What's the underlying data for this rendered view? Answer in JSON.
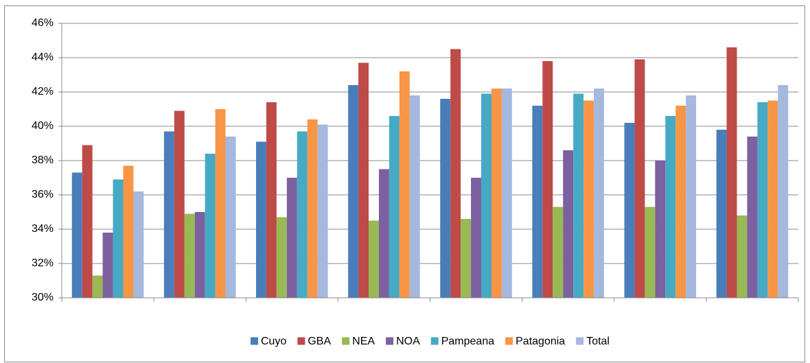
{
  "chart_data": {
    "type": "bar",
    "categories": [
      null,
      null,
      null,
      null,
      null,
      null,
      null,
      null
    ],
    "series": [
      {
        "name": "Cuyo",
        "color": "#4a7ebb",
        "values": [
          37.3,
          39.7,
          39.1,
          42.4,
          41.6,
          41.2,
          40.2,
          39.8
        ]
      },
      {
        "name": "GBA",
        "color": "#be4b48",
        "values": [
          38.9,
          40.9,
          41.4,
          43.7,
          44.5,
          43.8,
          43.9,
          44.6
        ]
      },
      {
        "name": "NEA",
        "color": "#98b954",
        "values": [
          31.3,
          34.9,
          34.7,
          34.5,
          34.6,
          35.3,
          35.3,
          34.8
        ]
      },
      {
        "name": "NOA",
        "color": "#7d60a0",
        "values": [
          33.8,
          35.0,
          37.0,
          37.5,
          37.0,
          38.6,
          38.0,
          39.4
        ]
      },
      {
        "name": "Pampeana",
        "color": "#46aac5",
        "values": [
          36.9,
          38.4,
          39.7,
          40.6,
          41.9,
          41.9,
          40.6,
          41.4
        ]
      },
      {
        "name": "Patagonia",
        "color": "#f79646",
        "values": [
          37.7,
          41.0,
          40.4,
          43.2,
          42.2,
          41.5,
          41.2,
          41.5
        ]
      },
      {
        "name": "Total",
        "color": "#a5b8de",
        "values": [
          36.2,
          39.4,
          40.1,
          41.8,
          42.2,
          42.2,
          41.8,
          42.4
        ]
      }
    ],
    "ylim": [
      30,
      46
    ],
    "yticks": [
      {
        "value": 30,
        "label": "30%"
      },
      {
        "value": 32,
        "label": "32%"
      },
      {
        "value": 34,
        "label": "34%"
      },
      {
        "value": 36,
        "label": "36%"
      },
      {
        "value": 38,
        "label": "38%"
      },
      {
        "value": 40,
        "label": "40%"
      },
      {
        "value": 42,
        "label": "42%"
      },
      {
        "value": 44,
        "label": "44%"
      },
      {
        "value": 46,
        "label": "46%"
      }
    ],
    "grid": true,
    "legend": "bottom"
  }
}
